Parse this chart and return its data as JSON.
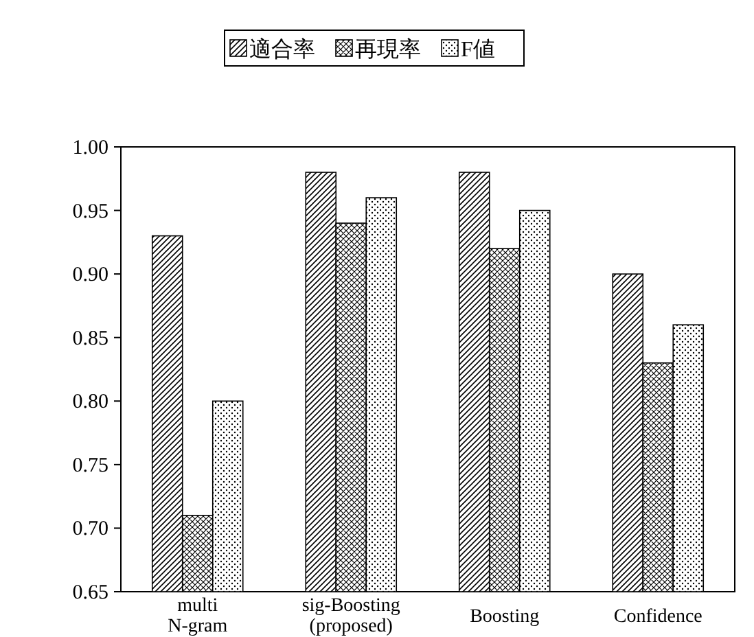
{
  "chart_data": {
    "type": "bar",
    "categories": [
      "multi\nN-gram",
      "sig-Boosting\n(proposed)",
      "Boosting",
      "Confidence"
    ],
    "series": [
      {
        "name": "適合率",
        "color": "#000000",
        "values": [
          0.93,
          0.98,
          0.98,
          0.9
        ]
      },
      {
        "name": "再現率",
        "color": "#000000",
        "values": [
          0.71,
          0.94,
          0.92,
          0.83
        ]
      },
      {
        "name": "F値",
        "color": "#000000",
        "values": [
          0.8,
          0.96,
          0.95,
          0.86
        ]
      }
    ],
    "ylim": [
      0.65,
      1.0
    ],
    "yticks": [
      {
        "value": 0.65,
        "label": "0.65"
      },
      {
        "value": 0.7,
        "label": "0.70"
      },
      {
        "value": 0.75,
        "label": "0.75"
      },
      {
        "value": 0.8,
        "label": "0.80"
      },
      {
        "value": 0.85,
        "label": "0.85"
      },
      {
        "value": 0.9,
        "label": "0.90"
      },
      {
        "value": 0.95,
        "label": "0.95"
      },
      {
        "value": 1.0,
        "label": "1.00"
      }
    ],
    "grid": false,
    "legend": "top"
  }
}
